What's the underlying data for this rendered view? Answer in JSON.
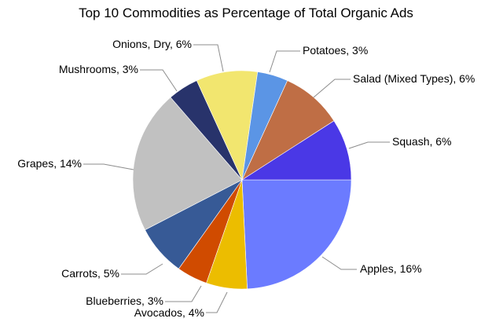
{
  "chart_data": {
    "type": "pie",
    "title": "Top 10 Commodities as Percentage of Total Organic Ads",
    "start": "three-o-clock",
    "direction": "clockwise",
    "slices": [
      {
        "name": "Apples",
        "value": 16,
        "label": "Apples, 16%",
        "color": "#6b7bff"
      },
      {
        "name": "Avocados",
        "value": 4,
        "label": "Avocados, 4%",
        "color": "#ecbd00"
      },
      {
        "name": "Blueberries",
        "value": 3,
        "label": "Blueberries, 3%",
        "color": "#d04b00"
      },
      {
        "name": "Carrots",
        "value": 5,
        "label": "Carrots, 5%",
        "color": "#375a96"
      },
      {
        "name": "Grapes",
        "value": 14,
        "label": "Grapes, 14%",
        "color": "#c1c1c1"
      },
      {
        "name": "Mushrooms",
        "value": 3,
        "label": "Mushrooms, 3%",
        "color": "#28336b"
      },
      {
        "name": "Onions, Dry",
        "value": 6,
        "label": "Onions, Dry, 6%",
        "color": "#f2e66f"
      },
      {
        "name": "Potatoes",
        "value": 3,
        "label": "Potatoes, 3%",
        "color": "#5b95e5"
      },
      {
        "name": "Salad (Mixed Types)",
        "value": 6,
        "label": "Salad (Mixed Types), 6%",
        "color": "#bf6e45"
      },
      {
        "name": "Squash",
        "value": 6,
        "label": "Squash, 6%",
        "color": "#4a38e6"
      }
    ]
  }
}
